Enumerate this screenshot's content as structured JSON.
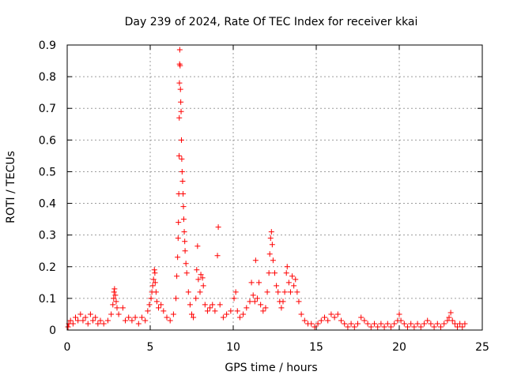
{
  "chart_data": {
    "type": "scatter",
    "title": "Day 239 of 2024, Rate Of TEC Index for receiver kkai",
    "xlabel": "GPS time / hours",
    "ylabel": "ROTI / TECUs",
    "xlim": [
      0,
      25
    ],
    "ylim": [
      0,
      0.9
    ],
    "x_ticks": [
      0,
      5,
      10,
      15,
      20,
      25
    ],
    "y_ticks": [
      0,
      0.1,
      0.2,
      0.3,
      0.4,
      0.5,
      0.6,
      0.7,
      0.8,
      0.9
    ],
    "x_tick_labels": [
      "0",
      "5",
      "10",
      "15",
      "20",
      "25"
    ],
    "y_tick_labels": [
      "0",
      "0.1",
      "0.2",
      "0.3",
      "0.4",
      "0.5",
      "0.6",
      "0.7",
      "0.8",
      "0.9"
    ],
    "grid": true,
    "marker": "+",
    "color": "#ff0000",
    "series": [
      {
        "points": [
          [
            0.05,
            0.01
          ],
          [
            0.1,
            0.02
          ],
          [
            0.2,
            0.03
          ],
          [
            0.35,
            0.02
          ],
          [
            0.5,
            0.04
          ],
          [
            0.65,
            0.03
          ],
          [
            0.8,
            0.05
          ],
          [
            0.95,
            0.03
          ],
          [
            1.1,
            0.04
          ],
          [
            1.25,
            0.02
          ],
          [
            1.4,
            0.05
          ],
          [
            1.55,
            0.03
          ],
          [
            1.7,
            0.04
          ],
          [
            1.85,
            0.02
          ],
          [
            2.0,
            0.03
          ],
          [
            2.2,
            0.02
          ],
          [
            2.45,
            0.03
          ],
          [
            2.65,
            0.05
          ],
          [
            2.75,
            0.08
          ],
          [
            2.8,
            0.1
          ],
          [
            2.82,
            0.12
          ],
          [
            2.85,
            0.13
          ],
          [
            2.9,
            0.11
          ],
          [
            2.95,
            0.09
          ],
          [
            3.0,
            0.07
          ],
          [
            3.1,
            0.05
          ],
          [
            3.35,
            0.07
          ],
          [
            3.5,
            0.03
          ],
          [
            3.7,
            0.04
          ],
          [
            3.9,
            0.03
          ],
          [
            4.1,
            0.04
          ],
          [
            4.3,
            0.02
          ],
          [
            4.5,
            0.04
          ],
          [
            4.7,
            0.03
          ],
          [
            4.85,
            0.06
          ],
          [
            4.95,
            0.08
          ],
          [
            5.05,
            0.1
          ],
          [
            5.1,
            0.12
          ],
          [
            5.15,
            0.14
          ],
          [
            5.2,
            0.16
          ],
          [
            5.25,
            0.19
          ],
          [
            5.28,
            0.18
          ],
          [
            5.3,
            0.15
          ],
          [
            5.35,
            0.12
          ],
          [
            5.4,
            0.09
          ],
          [
            5.5,
            0.07
          ],
          [
            5.65,
            0.08
          ],
          [
            5.8,
            0.06
          ],
          [
            6.0,
            0.04
          ],
          [
            6.2,
            0.03
          ],
          [
            6.4,
            0.05
          ],
          [
            6.55,
            0.1
          ],
          [
            6.6,
            0.17
          ],
          [
            6.65,
            0.23
          ],
          [
            6.68,
            0.29
          ],
          [
            6.7,
            0.34
          ],
          [
            6.72,
            0.43
          ],
          [
            6.74,
            0.55
          ],
          [
            6.75,
            0.67
          ],
          [
            6.76,
            0.78
          ],
          [
            6.77,
            0.84
          ],
          [
            6.78,
            0.885
          ],
          [
            6.8,
            0.835
          ],
          [
            6.82,
            0.76
          ],
          [
            6.84,
            0.72
          ],
          [
            6.86,
            0.69
          ],
          [
            6.88,
            0.6
          ],
          [
            6.9,
            0.54
          ],
          [
            6.92,
            0.5
          ],
          [
            6.95,
            0.47
          ],
          [
            6.98,
            0.43
          ],
          [
            7.0,
            0.39
          ],
          [
            7.02,
            0.35
          ],
          [
            7.05,
            0.31
          ],
          [
            7.08,
            0.28
          ],
          [
            7.1,
            0.25
          ],
          [
            7.15,
            0.21
          ],
          [
            7.2,
            0.18
          ],
          [
            7.3,
            0.12
          ],
          [
            7.4,
            0.08
          ],
          [
            7.5,
            0.05
          ],
          [
            7.6,
            0.04
          ],
          [
            7.75,
            0.1
          ],
          [
            7.8,
            0.19
          ],
          [
            7.85,
            0.265
          ],
          [
            7.9,
            0.16
          ],
          [
            8.0,
            0.12
          ],
          [
            8.05,
            0.175
          ],
          [
            8.15,
            0.165
          ],
          [
            8.2,
            0.14
          ],
          [
            8.3,
            0.08
          ],
          [
            8.45,
            0.06
          ],
          [
            8.6,
            0.07
          ],
          [
            8.75,
            0.08
          ],
          [
            8.9,
            0.06
          ],
          [
            9.05,
            0.235
          ],
          [
            9.1,
            0.325
          ],
          [
            9.2,
            0.08
          ],
          [
            9.4,
            0.04
          ],
          [
            9.6,
            0.05
          ],
          [
            9.85,
            0.06
          ],
          [
            10.05,
            0.1
          ],
          [
            10.15,
            0.12
          ],
          [
            10.25,
            0.06
          ],
          [
            10.4,
            0.04
          ],
          [
            10.6,
            0.05
          ],
          [
            10.8,
            0.07
          ],
          [
            11.0,
            0.09
          ],
          [
            11.1,
            0.15
          ],
          [
            11.2,
            0.11
          ],
          [
            11.3,
            0.09
          ],
          [
            11.35,
            0.22
          ],
          [
            11.45,
            0.1
          ],
          [
            11.55,
            0.15
          ],
          [
            11.65,
            0.08
          ],
          [
            11.8,
            0.06
          ],
          [
            11.95,
            0.07
          ],
          [
            12.05,
            0.12
          ],
          [
            12.15,
            0.18
          ],
          [
            12.2,
            0.24
          ],
          [
            12.25,
            0.29
          ],
          [
            12.3,
            0.31
          ],
          [
            12.35,
            0.27
          ],
          [
            12.4,
            0.22
          ],
          [
            12.5,
            0.18
          ],
          [
            12.6,
            0.14
          ],
          [
            12.7,
            0.12
          ],
          [
            12.8,
            0.09
          ],
          [
            12.9,
            0.07
          ],
          [
            13.0,
            0.09
          ],
          [
            13.1,
            0.12
          ],
          [
            13.2,
            0.18
          ],
          [
            13.25,
            0.2
          ],
          [
            13.35,
            0.15
          ],
          [
            13.45,
            0.12
          ],
          [
            13.55,
            0.17
          ],
          [
            13.65,
            0.14
          ],
          [
            13.75,
            0.16
          ],
          [
            13.85,
            0.12
          ],
          [
            13.95,
            0.09
          ],
          [
            14.1,
            0.05
          ],
          [
            14.3,
            0.03
          ],
          [
            14.5,
            0.02
          ],
          [
            14.7,
            0.02
          ],
          [
            14.9,
            0.01
          ],
          [
            15.1,
            0.02
          ],
          [
            15.3,
            0.03
          ],
          [
            15.5,
            0.04
          ],
          [
            15.7,
            0.03
          ],
          [
            15.9,
            0.05
          ],
          [
            16.1,
            0.04
          ],
          [
            16.3,
            0.05
          ],
          [
            16.5,
            0.03
          ],
          [
            16.7,
            0.02
          ],
          [
            16.9,
            0.01
          ],
          [
            17.1,
            0.02
          ],
          [
            17.3,
            0.01
          ],
          [
            17.5,
            0.02
          ],
          [
            17.7,
            0.04
          ],
          [
            17.9,
            0.03
          ],
          [
            18.1,
            0.02
          ],
          [
            18.3,
            0.01
          ],
          [
            18.5,
            0.02
          ],
          [
            18.7,
            0.01
          ],
          [
            18.9,
            0.02
          ],
          [
            19.1,
            0.01
          ],
          [
            19.3,
            0.02
          ],
          [
            19.5,
            0.01
          ],
          [
            19.7,
            0.02
          ],
          [
            19.9,
            0.03
          ],
          [
            20.0,
            0.05
          ],
          [
            20.1,
            0.03
          ],
          [
            20.3,
            0.02
          ],
          [
            20.5,
            0.01
          ],
          [
            20.7,
            0.02
          ],
          [
            20.9,
            0.01
          ],
          [
            21.1,
            0.02
          ],
          [
            21.3,
            0.01
          ],
          [
            21.5,
            0.02
          ],
          [
            21.7,
            0.03
          ],
          [
            21.9,
            0.02
          ],
          [
            22.1,
            0.01
          ],
          [
            22.3,
            0.02
          ],
          [
            22.5,
            0.01
          ],
          [
            22.7,
            0.02
          ],
          [
            22.9,
            0.03
          ],
          [
            23.0,
            0.04
          ],
          [
            23.1,
            0.055
          ],
          [
            23.2,
            0.03
          ],
          [
            23.35,
            0.02
          ],
          [
            23.5,
            0.01
          ],
          [
            23.65,
            0.02
          ],
          [
            23.8,
            0.01
          ],
          [
            23.95,
            0.02
          ]
        ]
      }
    ]
  }
}
